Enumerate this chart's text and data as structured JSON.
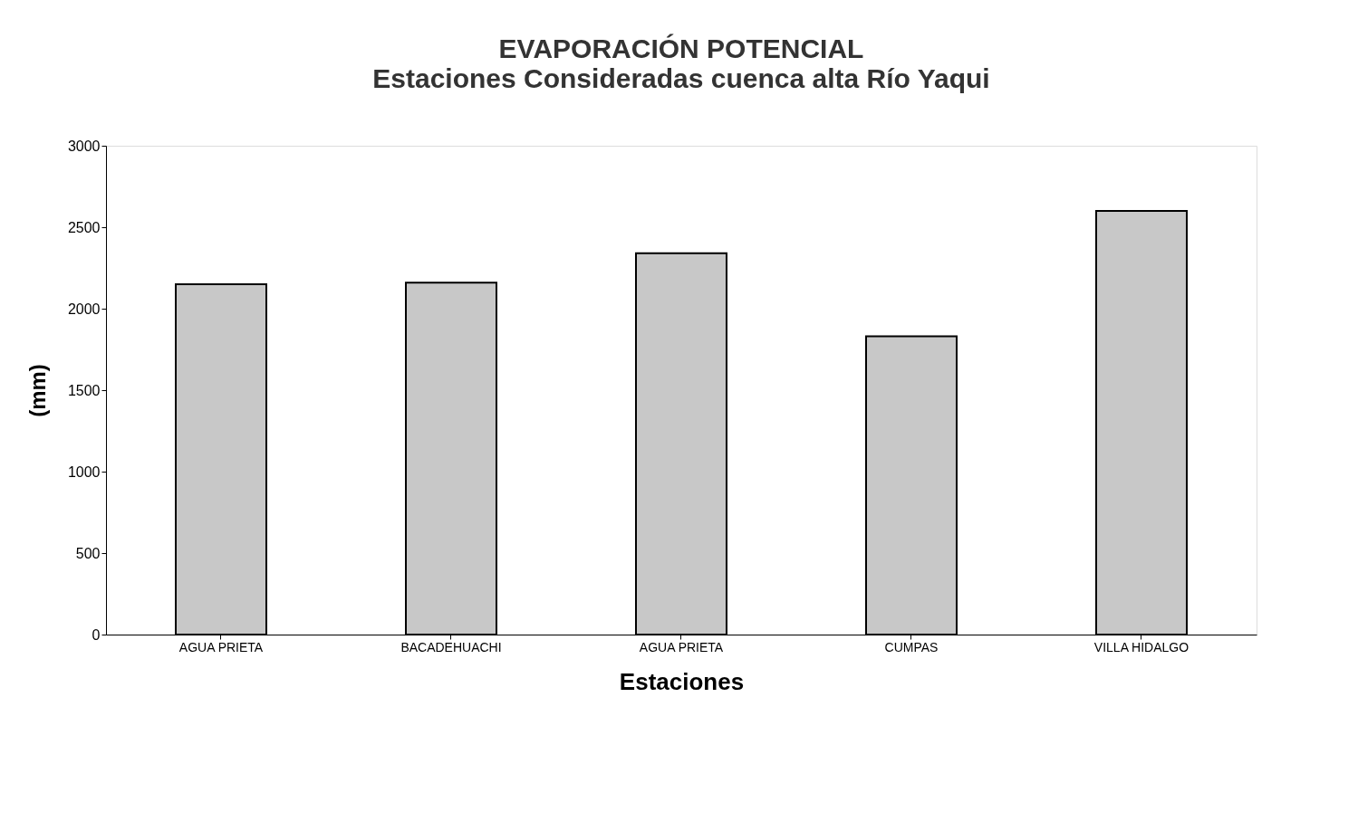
{
  "chart_data": {
    "type": "bar",
    "title": "EVAPORACIÓN POTENCIAL",
    "subtitle": "Estaciones Consideradas cuenca alta Río Yaqui",
    "xlabel": "Estaciones",
    "ylabel": "(mm)",
    "categories": [
      "AGUA PRIETA",
      "BACADEHUACHI",
      "AGUA PRIETA",
      "CUMPAS",
      "VILLA HIDALGO"
    ],
    "values": [
      2150,
      2160,
      2340,
      1830,
      2600
    ],
    "color": "#c8c8c8",
    "ylim": [
      0,
      3000
    ],
    "yticks": [
      0,
      500,
      1000,
      1500,
      2000,
      2500,
      3000
    ],
    "grid": false
  }
}
